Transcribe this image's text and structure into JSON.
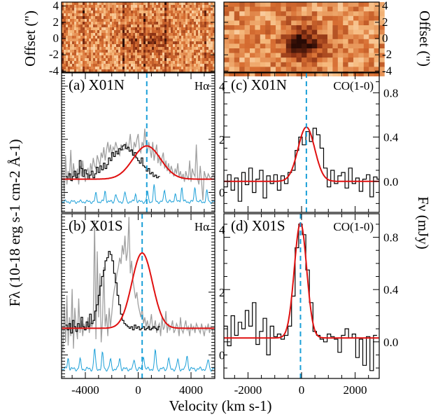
{
  "figure": {
    "xlabel": "Velocity (km s-1)",
    "ylabel_left": "Fλ (10-18 erg s-1 cm-2 Å-1)",
    "ylabel_right": "Fν (mJy)",
    "offset_label": "Offset (\")"
  },
  "colors": {
    "model": "#e01010",
    "data_black": "#000000",
    "data_gray": "#a0a0a0",
    "noise": "#1a9fd8",
    "marker": "#1a9fd8"
  },
  "chart_data": [
    {
      "id": "a",
      "type": "line",
      "panel_label": "(a) X01N",
      "line_name": "Hα",
      "xlim": [
        -5800,
        5800
      ],
      "ylim": [
        -0.75,
        4.5
      ],
      "yticks": [
        0,
        2,
        4
      ],
      "xticks": [
        -4000,
        0,
        4000
      ],
      "marker_x": 650,
      "model": {
        "type": "gaussian",
        "base": 0.5,
        "amp": 1.25,
        "center": 650,
        "sigma": 1050
      },
      "data_black": {
        "x_start": -5500,
        "step": 130,
        "values": [
          0.6,
          0.5,
          0.7,
          0.45,
          0.6,
          0.8,
          0.55,
          0.7,
          1.2,
          0.9,
          0.6,
          0.85,
          0.7,
          0.5,
          0.65,
          0.8,
          0.55,
          0.7,
          0.95,
          0.75,
          1.0,
          0.85,
          1.1,
          0.9,
          1.05,
          1.3,
          1.2,
          1.5,
          1.35,
          1.55,
          1.45,
          1.65,
          1.6,
          1.75,
          1.8,
          1.65,
          1.7,
          1.55,
          1.6,
          1.4,
          1.5,
          1.3,
          1.2,
          1.1,
          1.3,
          1.0,
          0.95,
          0.8,
          0.9,
          0.7,
          0.75,
          0.6,
          0.65,
          0.55,
          0.6
        ]
      },
      "data_gray": {
        "x_start": -5700,
        "step": 100,
        "values": [
          0.9,
          -0.2,
          1.4,
          0.3,
          0.8,
          0.6,
          1.6,
          0.4,
          1.1,
          0.7,
          0.5,
          0.9,
          0.3,
          1.0,
          0.6,
          1.2,
          0.7,
          0.4,
          0.8,
          0.9,
          0.5,
          1.1,
          0.8,
          1.3,
          1.0,
          0.9,
          1.4,
          1.2,
          1.0,
          1.5,
          1.3,
          1.7,
          1.2,
          1.6,
          1.9,
          1.5,
          1.8,
          1.3,
          1.7,
          1.6,
          1.9,
          1.7,
          1.5,
          1.4,
          1.8,
          1.6,
          1.6,
          1.7,
          1.9,
          1.6,
          1.8,
          2.2,
          1.6,
          1.4,
          1.9,
          1.7,
          2.0,
          2.2,
          1.6,
          1.5,
          1.9,
          1.7,
          2.4,
          1.8,
          1.5,
          1.9,
          1.6,
          1.3,
          1.9,
          1.2,
          1.5,
          1.8,
          1.1,
          1.4,
          1.0,
          1.3,
          1.5,
          0.9,
          1.2,
          0.8,
          1.1,
          0.7,
          1.0,
          0.8,
          0.6,
          0.9,
          0.7,
          1.1,
          0.6,
          0.8,
          0.5,
          0.7,
          0.4,
          0.8,
          0.6,
          0.5,
          1.2,
          0.4,
          0.9,
          0.7,
          0.6,
          1.8,
          0.5,
          0.3,
          1.0,
          0.4,
          -0.3,
          0.8,
          0.6,
          0.5,
          0.7,
          0.6,
          0.5,
          0.6,
          0.7,
          0.5
        ]
      },
      "noise": {
        "base": -0.35,
        "spikes": [
          [
            -3200,
            0.3
          ],
          [
            -2500,
            0.4
          ],
          [
            -1700,
            0.3
          ],
          [
            -1000,
            0.35
          ],
          [
            -200,
            0.3
          ],
          [
            700,
            0.35
          ],
          [
            1200,
            0.6
          ],
          [
            2000,
            0.45
          ],
          [
            2800,
            0.3
          ],
          [
            3300,
            0.55
          ],
          [
            4300,
            0.55
          ],
          [
            5200,
            0.4
          ]
        ]
      }
    },
    {
      "id": "b",
      "type": "line",
      "panel_label": "(b) X01S",
      "line_name": "Hα",
      "xlim": [
        -5800,
        5800
      ],
      "ylim": [
        -0.75,
        4.5
      ],
      "yticks": [
        0,
        2,
        4
      ],
      "xticks": [
        -4000,
        0,
        4000
      ],
      "marker_x": 300,
      "model": {
        "type": "gaussian",
        "base": 0.85,
        "amp": 2.4,
        "center": 300,
        "sigma": 780
      },
      "data_black": {
        "x_start": -5500,
        "step": 130,
        "values": [
          0.95,
          0.8,
          1.0,
          0.7,
          1.1,
          0.9,
          0.75,
          1.0,
          0.85,
          1.2,
          0.9,
          0.8,
          1.05,
          0.9,
          1.3,
          1.0,
          1.1,
          1.4,
          1.6,
          1.9,
          2.2,
          2.5,
          2.7,
          3.0,
          3.1,
          3.3,
          3.2,
          3.0,
          2.6,
          2.3,
          1.9,
          1.6,
          1.3,
          1.1,
          1.0,
          0.95,
          0.9,
          0.85,
          0.9,
          0.8,
          0.95,
          0.85,
          0.9,
          0.8,
          0.85,
          0.9,
          0.8,
          0.85,
          0.9,
          0.8,
          0.85,
          0.9,
          0.85,
          0.8,
          0.9
        ]
      },
      "data_gray": {
        "x_start": -5700,
        "step": 100,
        "values": [
          0.1,
          1.6,
          0.4,
          1.9,
          0.3,
          1.2,
          0.6,
          2.1,
          0.2,
          1.5,
          0.9,
          0.5,
          1.8,
          0.7,
          1.1,
          0.6,
          1.0,
          0.8,
          0.9,
          1.2,
          0.7,
          1.0,
          0.9,
          1.1,
          4.3,
          0.5,
          3.3,
          1.2,
          2.6,
          0.4,
          1.1,
          2.8,
          0.9,
          1.3,
          0.6,
          1.5,
          0.9,
          1.3,
          1.8,
          2.1,
          2.3,
          2.6,
          2.8,
          3.1,
          2.9,
          3.5,
          3.2,
          3.8,
          3.0,
          3.3,
          4.4,
          2.6,
          3.0,
          2.4,
          2.1,
          1.8,
          2.0,
          1.6,
          1.4,
          1.2,
          1.5,
          1.0,
          1.2,
          0.9,
          1.1,
          0.8,
          1.0,
          1.3,
          0.8,
          0.9,
          1.1,
          0.7,
          0.9,
          1.0,
          0.6,
          1.2,
          0.8,
          0.9,
          1.4,
          0.7,
          1.0,
          0.8,
          0.9,
          1.1,
          0.7,
          0.8,
          1.0,
          0.9,
          0.6,
          1.2,
          0.8,
          0.7,
          0.9,
          1.1,
          0.8,
          0.9,
          0.6,
          1.0,
          0.8,
          0.9,
          0.7,
          1.0,
          0.9,
          0.8,
          0.7,
          1.0,
          0.8,
          0.6,
          0.9,
          0.8,
          1.0,
          0.7,
          0.9,
          0.8,
          0.6
        ]
      },
      "noise": {
        "base": -0.45,
        "spikes": [
          [
            -5300,
            0.35
          ],
          [
            -4400,
            0.3
          ],
          [
            -3300,
            0.65
          ],
          [
            -2700,
            0.5
          ],
          [
            -2100,
            0.3
          ],
          [
            -1400,
            0.35
          ],
          [
            -300,
            0.3
          ],
          [
            400,
            0.45
          ],
          [
            1300,
            0.6
          ],
          [
            2300,
            0.35
          ],
          [
            3000,
            0.3
          ],
          [
            3700,
            0.45
          ],
          [
            5300,
            0.3
          ]
        ]
      }
    },
    {
      "id": "c",
      "type": "line",
      "panel_label": "(c) X01N",
      "line_name": "CO(1-0)",
      "xlim": [
        -2900,
        2900
      ],
      "ylim": [
        -0.28,
        0.98
      ],
      "yticks": [
        0.0,
        0.4,
        0.8
      ],
      "ytick_labels": [
        "0.0",
        "0.4",
        "0.8"
      ],
      "xticks": [
        -2000,
        0,
        2000
      ],
      "marker_x": 180,
      "model": {
        "type": "gaussian",
        "base": 0.0,
        "amp": 0.49,
        "center": 180,
        "sigma": 310
      },
      "data_step": {
        "x_start": -2900,
        "step": 133,
        "values": [
          -0.05,
          0.06,
          -0.08,
          0.03,
          -0.18,
          0.08,
          -0.03,
          0.12,
          -0.1,
          0.02,
          0.1,
          -0.15,
          0.05,
          -0.02,
          0.06,
          -0.08,
          0.05,
          -0.02,
          0.08,
          0.1,
          0.28,
          0.4,
          0.33,
          0.45,
          0.36,
          0.48,
          0.42,
          0.3,
          0.12,
          -0.05,
          0.1,
          -0.02,
          0.05,
          0.08,
          -0.06,
          0.12,
          -0.02,
          0.03,
          -0.09,
          0.02,
          0.06,
          -0.14,
          0.04,
          0.02
        ]
      }
    },
    {
      "id": "d",
      "type": "line",
      "panel_label": "(d) X01S",
      "line_name": "CO(1-0)",
      "xlim": [
        -2900,
        2900
      ],
      "ylim": [
        -0.28,
        0.98
      ],
      "yticks": [
        0.0,
        0.4,
        0.8
      ],
      "ytick_labels": [
        "0.0",
        "0.4",
        "0.8"
      ],
      "xticks": [
        -2000,
        0,
        2000
      ],
      "xtick_labels": [
        "-2000",
        "0",
        "2000"
      ],
      "marker_x": -40,
      "model": {
        "type": "gaussian",
        "base": 0.03,
        "amp": 0.88,
        "center": -40,
        "sigma": 230
      },
      "data_step": {
        "x_start": -2900,
        "step": 133,
        "values": [
          0.12,
          -0.03,
          0.2,
          0.05,
          0.15,
          0.1,
          0.24,
          0.12,
          0.3,
          -0.02,
          0.08,
          0.18,
          -0.1,
          0.12,
          0.04,
          0.06,
          0.02,
          0.05,
          0.12,
          0.35,
          0.72,
          0.9,
          0.82,
          0.55,
          0.3,
          0.08,
          0.05,
          0.02,
          0.0,
          0.06,
          0.04,
          0.02,
          -0.08,
          0.05,
          0.1,
          0.03,
          0.06,
          -0.12,
          0.02,
          -0.18,
          0.04,
          -0.22,
          0.05
        ]
      }
    }
  ]
}
